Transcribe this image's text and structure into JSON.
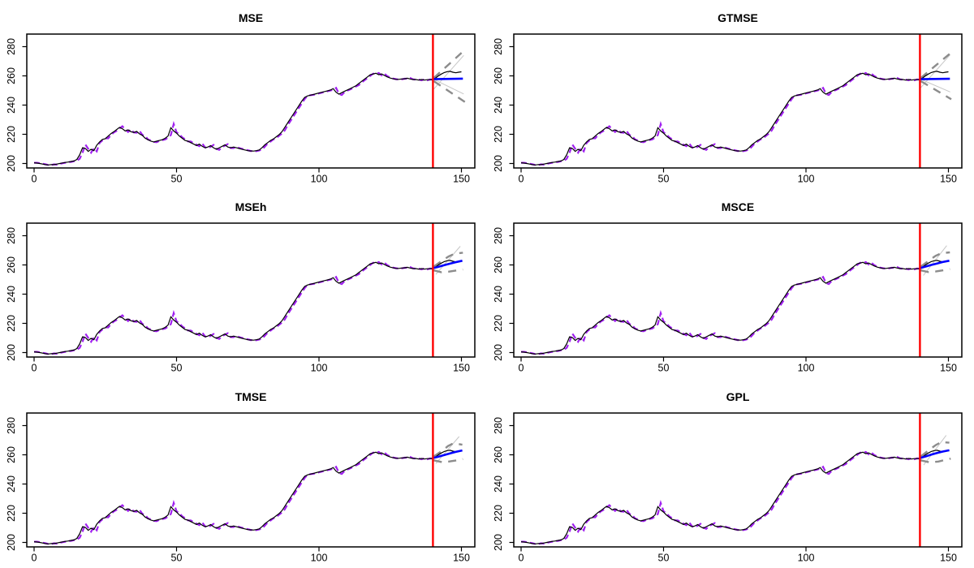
{
  "colors": {
    "background": "#FFFFFF",
    "actual": "#000000",
    "fitted": "#A020F0",
    "forecast": "#0000FF",
    "interval": "#8C8C8C",
    "interval_thin": "#C6C6C6",
    "split_line": "#FF0000",
    "axis": "#000000"
  },
  "chart_data": {
    "type": "line",
    "layout": {
      "rows": 3,
      "cols": 2,
      "grid": false,
      "legend": false
    },
    "x_ticks": [
      0,
      50,
      100,
      150
    ],
    "y_ticks": [
      200,
      220,
      240,
      260,
      280
    ],
    "xlim": [
      -2.6,
      154.7
    ],
    "ylim": [
      196.7,
      288.3
    ],
    "split_x": 140,
    "fitted_phi": 0.45,
    "actual_x_start": 0,
    "actual": [
      200.5,
      200.3,
      200.0,
      199.6,
      199.2,
      199.0,
      199.3,
      199.2,
      199.6,
      200.0,
      200.4,
      200.7,
      201.0,
      201.4,
      201.7,
      202.8,
      206.0,
      210.8,
      210.3,
      208.3,
      209.8,
      208.8,
      212.5,
      214.8,
      216.5,
      217.0,
      218.8,
      220.5,
      221.8,
      223.3,
      224.8,
      223.8,
      222.3,
      223.0,
      221.8,
      221.3,
      222.0,
      220.3,
      219.3,
      217.3,
      216.3,
      215.3,
      214.8,
      215.3,
      215.8,
      216.3,
      217.3,
      218.8,
      224.5,
      222.3,
      220.8,
      218.8,
      217.3,
      215.8,
      215.3,
      214.3,
      213.3,
      212.3,
      213.3,
      211.8,
      210.8,
      211.3,
      212.3,
      210.8,
      209.8,
      210.8,
      211.8,
      212.8,
      211.3,
      210.8,
      211.3,
      210.8,
      210.3,
      209.8,
      209.3,
      208.8,
      208.6,
      208.5,
      208.8,
      209.3,
      210.8,
      212.8,
      214.3,
      215.8,
      216.8,
      218.3,
      219.8,
      221.8,
      224.8,
      227.8,
      230.8,
      233.8,
      236.8,
      239.8,
      242.8,
      245.3,
      246.3,
      246.8,
      247.3,
      247.8,
      248.3,
      248.8,
      249.3,
      249.8,
      250.3,
      251.3,
      248.8,
      247.5,
      248.5,
      249.5,
      250.4,
      251.3,
      252.3,
      253.3,
      254.8,
      256.3,
      257.8,
      259.3,
      260.8,
      261.3,
      261.8,
      260.8,
      261.3,
      260.3,
      259.3,
      258.5,
      258.0,
      257.6,
      257.6,
      257.9,
      258.0,
      258.4,
      257.9,
      257.5,
      257.5,
      257.1,
      257.5,
      257.1,
      257.4,
      257.4,
      257.5
    ],
    "holdout_x_start": 140,
    "holdout": [
      257.5,
      258.6,
      260.1,
      261.3,
      262.3,
      262.9,
      263.1,
      262.5,
      262.1,
      262.5,
      262.8
    ],
    "panels": [
      {
        "title": "MSE",
        "forecast": {
          "x": [
            140,
            150.5
          ],
          "y": [
            257.7,
            258.1
          ]
        },
        "upper": {
          "x": [
            140.3,
            151.3
          ],
          "y": [
            258.6,
            278.0
          ]
        },
        "lower": {
          "x": [
            140.3,
            151.3
          ],
          "y": [
            256.4,
            242.0
          ]
        },
        "thin": [
          {
            "x": [
              140.3,
              150.8
            ],
            "y": [
              251.0,
              274.0
            ]
          },
          {
            "x": [
              140.3,
              150.8
            ],
            "y": [
              257.6,
              247.6
            ]
          }
        ]
      },
      {
        "title": "GTMSE",
        "forecast": {
          "x": [
            140,
            150.5
          ],
          "y": [
            257.7,
            258.0
          ]
        },
        "upper": {
          "x": [
            140.3,
            151.0
          ],
          "y": [
            258.6,
            276.0
          ]
        },
        "lower": {
          "x": [
            140.3,
            151.0
          ],
          "y": [
            256.4,
            244.0
          ]
        },
        "thin": [
          {
            "x": [
              140.3,
              150.6
            ],
            "y": [
              252.0,
              274.5
            ]
          },
          {
            "x": [
              140.3,
              150.6
            ],
            "y": [
              257.6,
              249.0
            ]
          }
        ]
      },
      {
        "title": "MSEh",
        "forecast": {
          "x": [
            140,
            142,
            144,
            146,
            148,
            150.3
          ],
          "y": [
            257.8,
            258.8,
            259.9,
            260.9,
            261.9,
            262.9
          ]
        },
        "upper": {
          "x": [
            140.3,
            143,
            145.5,
            147.5,
            150.5
          ],
          "y": [
            258.9,
            262.6,
            265.8,
            267.6,
            268.4
          ]
        },
        "lower": {
          "x": [
            140.3,
            143,
            145.5,
            148,
            150.5
          ],
          "y": [
            256.3,
            255.0,
            255.4,
            256.1,
            256.9
          ]
        },
        "thin": [
          {
            "x": [
              141,
              149.6
            ],
            "y": [
              253.5,
              272.8
            ]
          }
        ]
      },
      {
        "title": "MSCE",
        "forecast": {
          "x": [
            140,
            142,
            144,
            146,
            148,
            150.3
          ],
          "y": [
            257.8,
            258.9,
            260.0,
            261.0,
            262.0,
            262.9
          ]
        },
        "upper": {
          "x": [
            140.3,
            143,
            145.5,
            147.5,
            150.5
          ],
          "y": [
            258.9,
            262.8,
            266.2,
            268.0,
            268.6
          ]
        },
        "lower": {
          "x": [
            140.3,
            143,
            145.5,
            148,
            150.5
          ],
          "y": [
            256.3,
            255.1,
            255.5,
            256.3,
            257.2
          ]
        },
        "thin": [
          {
            "x": [
              141.2,
              149.4
            ],
            "y": [
              252.8,
              273.2
            ]
          }
        ]
      },
      {
        "title": "TMSE",
        "forecast": {
          "x": [
            140,
            142,
            144,
            146,
            148,
            150.3
          ],
          "y": [
            257.8,
            258.8,
            259.9,
            261.0,
            262.0,
            263.0
          ]
        },
        "upper": {
          "x": [
            140.3,
            143,
            145.3,
            147.3,
            150.3
          ],
          "y": [
            258.9,
            262.4,
            266.0,
            268.0,
            266.9
          ]
        },
        "lower": {
          "x": [
            140.3,
            143.5,
            146,
            148.5,
            150.5
          ],
          "y": [
            256.2,
            254.9,
            255.5,
            256.3,
            257.1
          ]
        },
        "thin": [
          {
            "x": [
              141,
              149.2
            ],
            "y": [
              254.0,
              272.5
            ]
          }
        ]
      },
      {
        "title": "GPL",
        "forecast": {
          "x": [
            140,
            142,
            144,
            146,
            148,
            150.3
          ],
          "y": [
            257.8,
            258.9,
            260.1,
            261.2,
            262.2,
            263.1
          ]
        },
        "upper": {
          "x": [
            140.3,
            143,
            145.5,
            147.5,
            150.3
          ],
          "y": [
            258.9,
            263.0,
            266.6,
            268.8,
            268.3
          ]
        },
        "lower": {
          "x": [
            140.3,
            143.5,
            146.5,
            149,
            150.8
          ],
          "y": [
            256.2,
            254.8,
            255.4,
            256.6,
            257.4
          ]
        },
        "thin": [
          {
            "x": [
              141.3,
              149.2
            ],
            "y": [
              253.0,
              273.3
            ]
          }
        ]
      }
    ]
  }
}
